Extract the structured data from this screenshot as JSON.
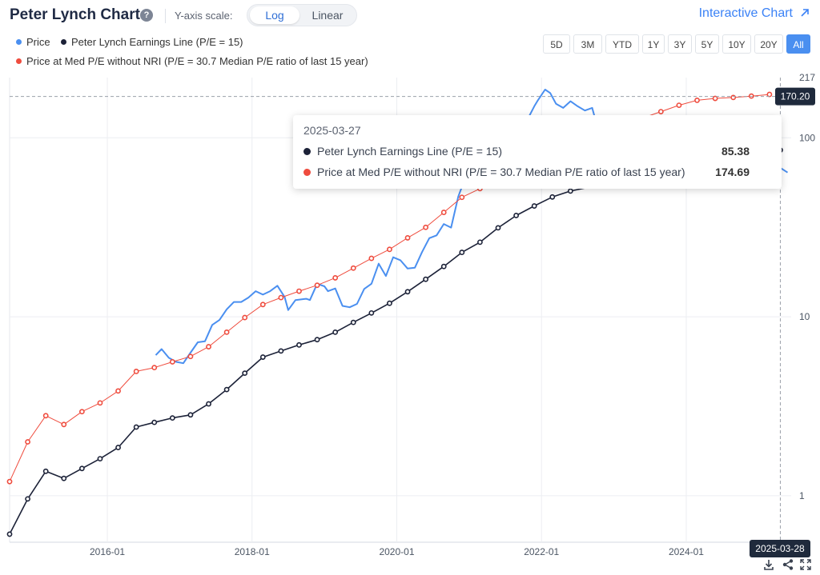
{
  "header": {
    "title": "Peter Lynch Chart",
    "help_icon": "?",
    "scale_label": "Y-axis scale:",
    "scale_options": [
      "Log",
      "Linear"
    ],
    "scale_selected": "Log",
    "interactive_link": "Interactive Chart"
  },
  "legend": [
    {
      "label": "Price",
      "color": "#4a8ff0"
    },
    {
      "label": "Peter Lynch Earnings Line (P/E = 15)",
      "color": "#1c2238"
    },
    {
      "label": "Price at Med P/E without NRI (P/E = 30.7 Median P/E ratio of last 15 year)",
      "color": "#ef4c3e"
    }
  ],
  "range_buttons": [
    "5D",
    "3M",
    "YTD",
    "1Y",
    "3Y",
    "5Y",
    "10Y",
    "20Y",
    "All"
  ],
  "range_selected": "All",
  "tooltip": {
    "date": "2025-03-27",
    "rows": [
      {
        "label": "Peter Lynch Earnings Line (P/E = 15)",
        "value": "85.38",
        "color": "#1c2238"
      },
      {
        "label": "Price at Med P/E without NRI (P/E = 30.7 Median P/E ratio of last 15 year)",
        "value": "174.69",
        "color": "#ef4c3e"
      }
    ]
  },
  "crosshair": {
    "price_label": "170.20",
    "price_value": 170.2,
    "date_label": "2025-03-28"
  },
  "chart_data": {
    "type": "line",
    "y_scale": "log",
    "xlim": [
      2014.65,
      2025.45
    ],
    "ylim": [
      0.55,
      217
    ],
    "y_tick_labels": [
      "1",
      "10",
      "100",
      "217"
    ],
    "y_ticks": [
      1,
      10,
      100,
      217
    ],
    "x_tick_labels": [
      "2016-01",
      "2018-01",
      "2020-01",
      "2022-01",
      "2024-01"
    ],
    "x_ticks": [
      2016.0,
      2018.0,
      2020.0,
      2022.0,
      2024.0
    ],
    "grid": true,
    "series": [
      {
        "name": "Price",
        "color": "#4a8ff0",
        "markers": false,
        "points": [
          [
            2016.67,
            6.1
          ],
          [
            2016.75,
            6.6
          ],
          [
            2016.85,
            5.9
          ],
          [
            2016.95,
            5.6
          ],
          [
            2017.05,
            5.5
          ],
          [
            2017.15,
            6.3
          ],
          [
            2017.25,
            7.2
          ],
          [
            2017.35,
            7.3
          ],
          [
            2017.45,
            9.0
          ],
          [
            2017.55,
            9.6
          ],
          [
            2017.65,
            11.0
          ],
          [
            2017.75,
            12.1
          ],
          [
            2017.85,
            12.1
          ],
          [
            2017.95,
            12.8
          ],
          [
            2018.05,
            13.9
          ],
          [
            2018.15,
            13.3
          ],
          [
            2018.25,
            13.9
          ],
          [
            2018.35,
            14.9
          ],
          [
            2018.45,
            12.9
          ],
          [
            2018.5,
            10.9
          ],
          [
            2018.6,
            12.4
          ],
          [
            2018.75,
            12.6
          ],
          [
            2018.8,
            12.4
          ],
          [
            2018.9,
            15.3
          ],
          [
            2019.0,
            14.8
          ],
          [
            2019.05,
            13.9
          ],
          [
            2019.15,
            14.4
          ],
          [
            2019.25,
            11.5
          ],
          [
            2019.35,
            11.3
          ],
          [
            2019.45,
            11.8
          ],
          [
            2019.55,
            14.3
          ],
          [
            2019.65,
            15.3
          ],
          [
            2019.75,
            19.8
          ],
          [
            2019.85,
            16.9
          ],
          [
            2019.95,
            21.5
          ],
          [
            2020.05,
            20.7
          ],
          [
            2020.15,
            18.6
          ],
          [
            2020.25,
            18.8
          ],
          [
            2020.35,
            23.0
          ],
          [
            2020.45,
            27.5
          ],
          [
            2020.55,
            28.5
          ],
          [
            2020.65,
            33.0
          ],
          [
            2020.75,
            31.5
          ],
          [
            2020.85,
            47.0
          ],
          [
            2020.95,
            60.0
          ],
          [
            2021.05,
            72.0
          ],
          [
            2021.2,
            75.0
          ],
          [
            2021.4,
            80.0
          ],
          [
            2021.6,
            85.0
          ],
          [
            2021.8,
            125.0
          ],
          [
            2021.9,
            150.0
          ],
          [
            2021.95,
            162.0
          ],
          [
            2022.05,
            186.0
          ],
          [
            2022.12,
            178.0
          ],
          [
            2022.2,
            155.0
          ],
          [
            2022.3,
            147.0
          ],
          [
            2022.4,
            160.0
          ],
          [
            2022.5,
            150.0
          ],
          [
            2022.6,
            142.0
          ],
          [
            2022.7,
            147.0
          ],
          [
            2022.78,
            112.0
          ],
          [
            2022.85,
            118.0
          ],
          [
            2024.85,
            80.0
          ],
          [
            2024.95,
            74.0
          ],
          [
            2025.1,
            73.0
          ],
          [
            2025.2,
            72.0
          ],
          [
            2025.3,
            68.0
          ],
          [
            2025.4,
            64.0
          ]
        ]
      },
      {
        "name": "Peter Lynch Earnings Line (P/E = 15)",
        "color": "#1c2238",
        "markers": true,
        "points": [
          [
            2014.65,
            0.61
          ],
          [
            2014.9,
            0.96
          ],
          [
            2015.15,
            1.37
          ],
          [
            2015.4,
            1.25
          ],
          [
            2015.65,
            1.42
          ],
          [
            2015.9,
            1.61
          ],
          [
            2016.15,
            1.86
          ],
          [
            2016.4,
            2.42
          ],
          [
            2016.65,
            2.57
          ],
          [
            2016.9,
            2.72
          ],
          [
            2017.15,
            2.83
          ],
          [
            2017.4,
            3.26
          ],
          [
            2017.65,
            3.92
          ],
          [
            2017.9,
            4.84
          ],
          [
            2018.15,
            5.95
          ],
          [
            2018.4,
            6.44
          ],
          [
            2018.65,
            6.96
          ],
          [
            2018.9,
            7.45
          ],
          [
            2019.15,
            8.2
          ],
          [
            2019.4,
            9.3
          ],
          [
            2019.65,
            10.5
          ],
          [
            2019.9,
            11.9
          ],
          [
            2020.15,
            13.8
          ],
          [
            2020.4,
            16.2
          ],
          [
            2020.65,
            19.1
          ],
          [
            2020.9,
            22.9
          ],
          [
            2021.15,
            26.1
          ],
          [
            2021.4,
            31.4
          ],
          [
            2021.65,
            36.8
          ],
          [
            2021.9,
            41.6
          ],
          [
            2022.15,
            46.7
          ],
          [
            2022.4,
            50.4
          ],
          [
            2025.15,
            85.38
          ],
          [
            2025.3,
            85.38
          ]
        ]
      },
      {
        "name": "Price at Med P/E without NRI (P/E = 30.7 Median P/E ratio of last 15 year)",
        "color": "#ef4c3e",
        "markers": true,
        "points": [
          [
            2014.65,
            1.2
          ],
          [
            2014.9,
            2.0
          ],
          [
            2015.15,
            2.8
          ],
          [
            2015.4,
            2.5
          ],
          [
            2015.65,
            2.95
          ],
          [
            2015.9,
            3.3
          ],
          [
            2016.15,
            3.85
          ],
          [
            2016.4,
            4.95
          ],
          [
            2016.65,
            5.2
          ],
          [
            2016.9,
            5.6
          ],
          [
            2017.15,
            6.0
          ],
          [
            2017.4,
            6.8
          ],
          [
            2017.65,
            8.2
          ],
          [
            2017.9,
            9.9
          ],
          [
            2018.15,
            11.7
          ],
          [
            2018.4,
            12.8
          ],
          [
            2018.65,
            13.9
          ],
          [
            2018.9,
            15.0
          ],
          [
            2019.15,
            16.5
          ],
          [
            2019.4,
            18.7
          ],
          [
            2019.65,
            21.2
          ],
          [
            2019.9,
            23.8
          ],
          [
            2020.15,
            27.6
          ],
          [
            2020.4,
            31.6
          ],
          [
            2020.65,
            38.3
          ],
          [
            2020.9,
            46.5
          ],
          [
            2021.15,
            52.0
          ],
          [
            2021.4,
            60.0
          ],
          [
            2021.65,
            68.0
          ],
          [
            2021.9,
            77.0
          ],
          [
            2022.15,
            85.0
          ],
          [
            2022.4,
            93.0
          ],
          [
            2022.65,
            101.0
          ],
          [
            2022.9,
            110.0
          ],
          [
            2023.15,
            119.0
          ],
          [
            2023.4,
            129.0
          ],
          [
            2023.65,
            140.0
          ],
          [
            2023.9,
            152.0
          ],
          [
            2024.15,
            162.0
          ],
          [
            2024.4,
            166.0
          ],
          [
            2024.65,
            168.0
          ],
          [
            2024.9,
            171.0
          ],
          [
            2025.15,
            174.69
          ]
        ]
      }
    ]
  },
  "bottom_icons": [
    "download-icon",
    "share-icon",
    "fullscreen-icon"
  ]
}
